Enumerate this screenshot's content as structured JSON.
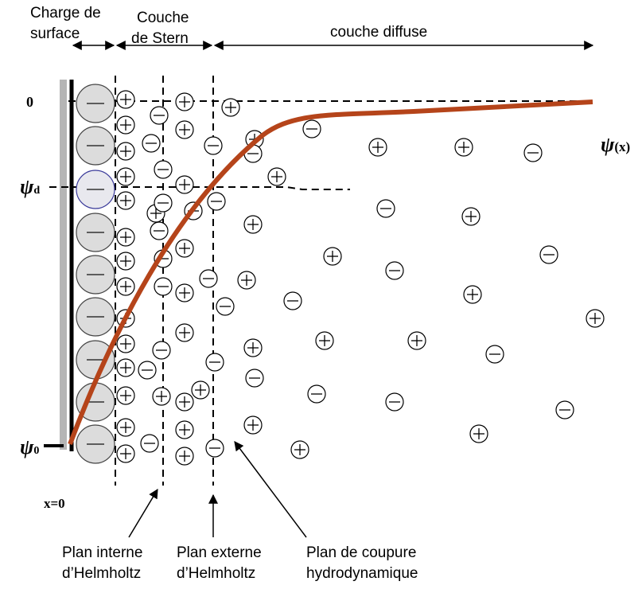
{
  "labels": {
    "surface_charge": [
      "Charge de",
      "surface"
    ],
    "stern_layer": [
      "Couche",
      "de Stern"
    ],
    "diffuse_layer": "couche diffuse",
    "zero": "0",
    "psi_d": {
      "symbol": "ψ",
      "subscript": "d"
    },
    "psi_0": {
      "symbol": "ψ",
      "subscript": "0"
    },
    "psi_x": {
      "symbol": "ψ",
      "arg": "(x)"
    },
    "x_zero": "x=0",
    "inner_helmholtz": [
      "Plan interne",
      "d’Helmholtz"
    ],
    "outer_helmholtz": [
      "Plan externe",
      "d’Helmholtz"
    ],
    "shear_plane": [
      "Plan de coupure",
      "hydrodynamique"
    ]
  }
}
